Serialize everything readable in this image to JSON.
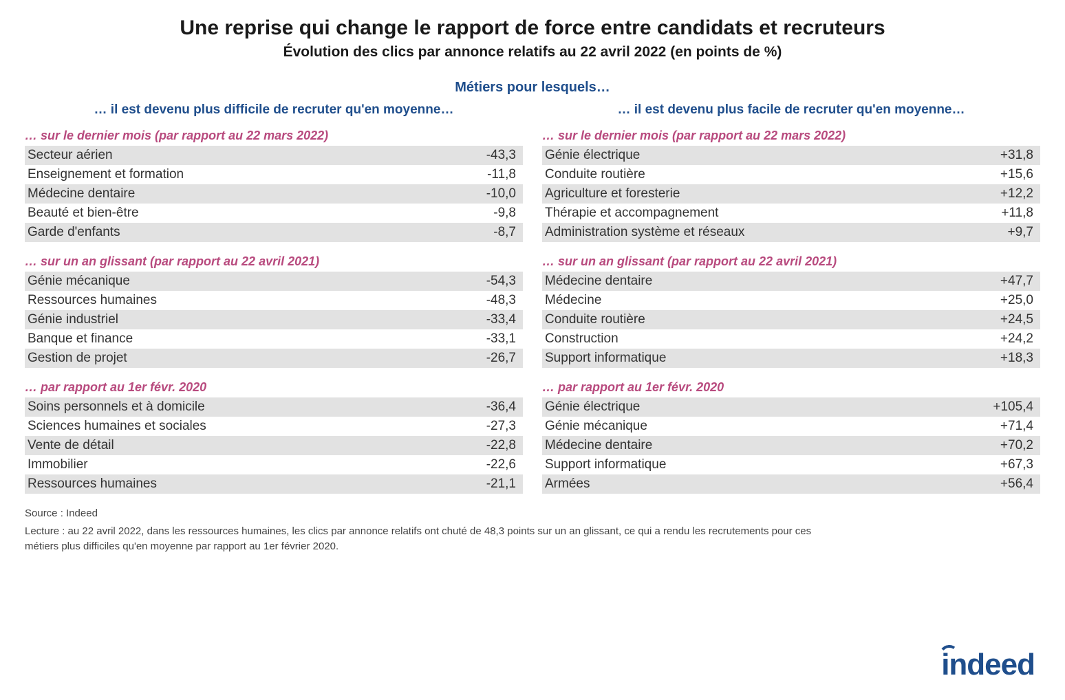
{
  "colors": {
    "background": "#ffffff",
    "text": "#212529",
    "title": "#1a1a1a",
    "section_head": "#1f4e8c",
    "group_head": "#b84a7e",
    "row_stripe": "#e2e2e2",
    "footer_text": "#444444",
    "logo": "#1f4e8c"
  },
  "typography": {
    "title_fontsize": 30,
    "subtitle_fontsize": 21,
    "section_head_fontsize": 20,
    "col_title_fontsize": 19,
    "group_head_fontsize": 18,
    "row_fontsize": 19,
    "footer_fontsize": 15,
    "logo_fontsize": 44
  },
  "title": "Une reprise qui change le rapport de force entre candidats et recruteurs",
  "subtitle": "Évolution des clics par annonce relatifs au 22 avril 2022 (en points de %)",
  "section_heading": "Métiers pour lesquels…",
  "left": {
    "title": "… il est devenu plus difficile de recruter qu'en moyenne…",
    "g1": {
      "head": "… sur le dernier mois (par rapport au 22 mars 2022)",
      "r0": {
        "label": "Secteur aérien",
        "val": "-43,3"
      },
      "r1": {
        "label": "Enseignement et formation",
        "val": "-11,8"
      },
      "r2": {
        "label": "Médecine dentaire",
        "val": "-10,0"
      },
      "r3": {
        "label": "Beauté et bien-être",
        "val": "-9,8"
      },
      "r4": {
        "label": "Garde d'enfants",
        "val": "-8,7"
      }
    },
    "g2": {
      "head": "… sur un an glissant (par rapport au 22 avril 2021)",
      "r0": {
        "label": "Génie mécanique",
        "val": "-54,3"
      },
      "r1": {
        "label": "Ressources humaines",
        "val": "-48,3"
      },
      "r2": {
        "label": "Génie industriel",
        "val": "-33,4"
      },
      "r3": {
        "label": "Banque et finance",
        "val": "-33,1"
      },
      "r4": {
        "label": "Gestion de projet",
        "val": "-26,7"
      }
    },
    "g3": {
      "head": "… par rapport au 1er févr. 2020",
      "r0": {
        "label": "Soins personnels et à domicile",
        "val": "-36,4"
      },
      "r1": {
        "label": "Sciences humaines et sociales",
        "val": "-27,3"
      },
      "r2": {
        "label": "Vente de détail",
        "val": "-22,8"
      },
      "r3": {
        "label": "Immobilier",
        "val": "-22,6"
      },
      "r4": {
        "label": "Ressources humaines",
        "val": "-21,1"
      }
    }
  },
  "right": {
    "title": "… il est devenu plus facile de recruter qu'en moyenne…",
    "g1": {
      "head": "… sur le dernier mois (par rapport au 22 mars 2022)",
      "r0": {
        "label": "Génie électrique",
        "val": "+31,8"
      },
      "r1": {
        "label": "Conduite routière",
        "val": "+15,6"
      },
      "r2": {
        "label": "Agriculture et foresterie",
        "val": "+12,2"
      },
      "r3": {
        "label": "Thérapie et accompagnement",
        "val": "+11,8"
      },
      "r4": {
        "label": "Administration système et réseaux",
        "val": "+9,7"
      }
    },
    "g2": {
      "head": "… sur un an glissant (par rapport au 22 avril 2021)",
      "r0": {
        "label": "Médecine dentaire",
        "val": "+47,7"
      },
      "r1": {
        "label": "Médecine",
        "val": "+25,0"
      },
      "r2": {
        "label": "Conduite routière",
        "val": "+24,5"
      },
      "r3": {
        "label": "Construction",
        "val": "+24,2"
      },
      "r4": {
        "label": "Support informatique",
        "val": "+18,3"
      }
    },
    "g3": {
      "head": "… par rapport au 1er févr. 2020",
      "r0": {
        "label": "Génie électrique",
        "val": "+105,4"
      },
      "r1": {
        "label": "Génie mécanique",
        "val": "+71,4"
      },
      "r2": {
        "label": "Médecine dentaire",
        "val": "+70,2"
      },
      "r3": {
        "label": "Support informatique",
        "val": "+67,3"
      },
      "r4": {
        "label": "Armées",
        "val": "+56,4"
      }
    }
  },
  "footer": {
    "source": "Source : Indeed",
    "note": "Lecture : au 22 avril 2022, dans les ressources humaines, les clics par annonce relatifs ont chuté de 48,3 points sur un an glissant, ce qui a rendu les recrutements pour ces métiers plus difficiles qu'en moyenne par rapport au 1er février 2020."
  },
  "logo": {
    "text": "indeed"
  }
}
